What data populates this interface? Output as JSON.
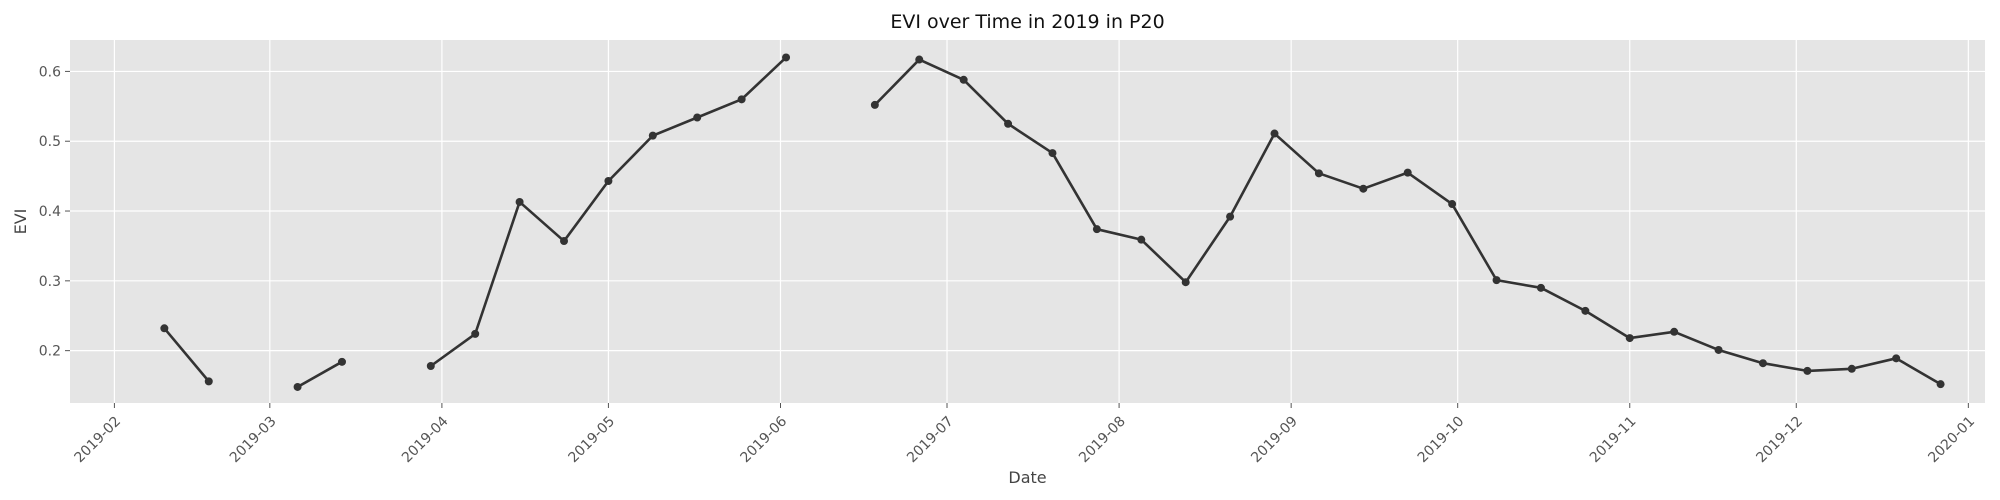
{
  "chart_data": {
    "type": "line",
    "title": "EVI over Time in 2019 in P20",
    "xlabel": "Date",
    "ylabel": "EVI",
    "grid": true,
    "legend": "none",
    "x_range": [
      "2019-01-24",
      "2020-01-04"
    ],
    "ylim": [
      0.125,
      0.645
    ],
    "x_ticks": [
      "2019-02",
      "2019-03",
      "2019-04",
      "2019-05",
      "2019-06",
      "2019-07",
      "2019-08",
      "2019-09",
      "2019-10",
      "2019-11",
      "2019-12",
      "2020-01"
    ],
    "y_ticks": [
      0.2,
      0.3,
      0.4,
      0.5,
      0.6
    ],
    "colors": {
      "line": "#333333",
      "plot_background": "#e5e5e5",
      "grid": "#ffffff"
    },
    "series": [
      {
        "points": [
          {
            "x": "2019-02-10",
            "y": 0.232
          },
          {
            "x": "2019-02-18",
            "y": 0.156
          },
          {
            "x": "2019-02-26",
            "y": null
          },
          {
            "x": "2019-03-06",
            "y": 0.148
          },
          {
            "x": "2019-03-14",
            "y": 0.184
          },
          {
            "x": "2019-03-22",
            "y": null
          },
          {
            "x": "2019-03-30",
            "y": 0.178
          },
          {
            "x": "2019-04-07",
            "y": 0.224
          },
          {
            "x": "2019-04-15",
            "y": 0.413
          },
          {
            "x": "2019-04-23",
            "y": 0.357
          },
          {
            "x": "2019-05-01",
            "y": 0.443
          },
          {
            "x": "2019-05-09",
            "y": 0.508
          },
          {
            "x": "2019-05-17",
            "y": 0.534
          },
          {
            "x": "2019-05-25",
            "y": 0.56
          },
          {
            "x": "2019-06-02",
            "y": 0.62
          },
          {
            "x": "2019-06-10",
            "y": null
          },
          {
            "x": "2019-06-18",
            "y": 0.552
          },
          {
            "x": "2019-06-26",
            "y": 0.617
          },
          {
            "x": "2019-07-04",
            "y": 0.588
          },
          {
            "x": "2019-07-12",
            "y": 0.525
          },
          {
            "x": "2019-07-20",
            "y": 0.483
          },
          {
            "x": "2019-07-28",
            "y": 0.374
          },
          {
            "x": "2019-08-05",
            "y": 0.359
          },
          {
            "x": "2019-08-13",
            "y": 0.298
          },
          {
            "x": "2019-08-21",
            "y": 0.392
          },
          {
            "x": "2019-08-29",
            "y": 0.511
          },
          {
            "x": "2019-09-06",
            "y": 0.454
          },
          {
            "x": "2019-09-14",
            "y": 0.432
          },
          {
            "x": "2019-09-22",
            "y": 0.455
          },
          {
            "x": "2019-09-30",
            "y": 0.41
          },
          {
            "x": "2019-10-08",
            "y": 0.301
          },
          {
            "x": "2019-10-16",
            "y": 0.29
          },
          {
            "x": "2019-10-24",
            "y": 0.257
          },
          {
            "x": "2019-11-01",
            "y": 0.218
          },
          {
            "x": "2019-11-09",
            "y": 0.227
          },
          {
            "x": "2019-11-17",
            "y": 0.201
          },
          {
            "x": "2019-11-25",
            "y": 0.182
          },
          {
            "x": "2019-12-03",
            "y": 0.171
          },
          {
            "x": "2019-12-11",
            "y": 0.174
          },
          {
            "x": "2019-12-19",
            "y": 0.189
          },
          {
            "x": "2019-12-27",
            "y": 0.152
          }
        ]
      }
    ]
  }
}
